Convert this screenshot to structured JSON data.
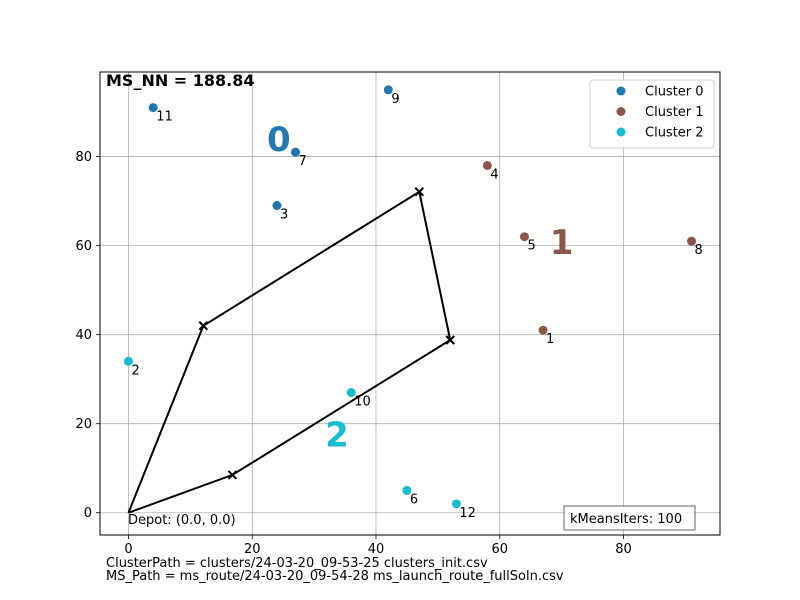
{
  "chart_data": {
    "type": "scatter",
    "title_metric": "MS_NN = 188.84",
    "xlim": [
      -4.6,
      95.6
    ],
    "ylim": [
      -5,
      99
    ],
    "xticks": [
      0,
      20,
      40,
      60,
      80
    ],
    "yticks": [
      0,
      20,
      40,
      60,
      80
    ],
    "grid": true,
    "legend_placement": "top-right",
    "series": [
      {
        "name": "Cluster 0",
        "color": "#1f77b4",
        "label": "0",
        "label_at": [
          24.3,
          83.9
        ],
        "points": [
          {
            "id": "3",
            "x": 24,
            "y": 69
          },
          {
            "id": "7",
            "x": 27,
            "y": 81
          },
          {
            "id": "9",
            "x": 42,
            "y": 95
          },
          {
            "id": "11",
            "x": 4,
            "y": 91
          }
        ]
      },
      {
        "name": "Cluster 1",
        "color": "#8c564b",
        "label": "1",
        "label_at": [
          70.0,
          60.8
        ],
        "points": [
          {
            "id": "1",
            "x": 67,
            "y": 41
          },
          {
            "id": "4",
            "x": 58,
            "y": 78
          },
          {
            "id": "5",
            "x": 64,
            "y": 62
          },
          {
            "id": "8",
            "x": 91,
            "y": 61
          }
        ]
      },
      {
        "name": "Cluster 2",
        "color": "#17becf",
        "label": "2",
        "label_at": [
          33.7,
          17.6
        ],
        "points": [
          {
            "id": "2",
            "x": 0,
            "y": 34
          },
          {
            "id": "6",
            "x": 45,
            "y": 5
          },
          {
            "id": "10",
            "x": 36,
            "y": 27
          },
          {
            "id": "12",
            "x": 53,
            "y": 2
          }
        ]
      }
    ],
    "route": [
      [
        0,
        0
      ],
      [
        12.1,
        42.0
      ],
      [
        47.0,
        72.1
      ],
      [
        52.0,
        38.8
      ],
      [
        16.8,
        8.5
      ],
      [
        0,
        0
      ]
    ],
    "depot_label": "Depot: (0.0, 0.0)",
    "iterations_label": "kMeansIters: 100"
  },
  "footer": {
    "cluster_path": "ClusterPath = clusters/24-03-20_09-53-25 clusters_init.csv",
    "ms_path": "MS_Path = ms_route/24-03-20_09-54-28 ms_launch_route_fullSoln.csv"
  }
}
